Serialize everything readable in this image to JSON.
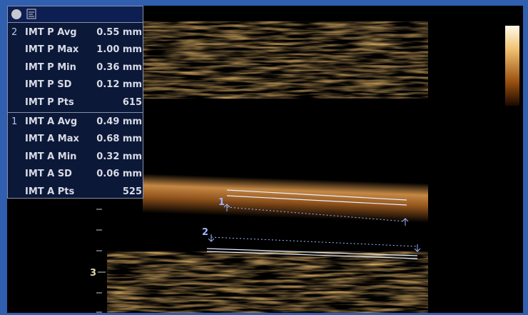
{
  "panel": {
    "groups": [
      {
        "index": "2",
        "rows": [
          {
            "label": "IMT P Avg",
            "value": "0.55 mm"
          },
          {
            "label": "IMT P Max",
            "value": "1.00 mm"
          },
          {
            "label": "IMT P Min",
            "value": "0.36 mm"
          },
          {
            "label": "IMT P SD",
            "value": "0.12 mm"
          },
          {
            "label": "IMT P Pts",
            "value": "615"
          }
        ]
      },
      {
        "index": "1",
        "rows": [
          {
            "label": "IMT A Avg",
            "value": "0.49 mm"
          },
          {
            "label": "IMT A Max",
            "value": "0.68 mm"
          },
          {
            "label": "IMT A Min",
            "value": "0.32 mm"
          },
          {
            "label": "IMT A SD",
            "value": "0.06 mm"
          },
          {
            "label": "IMT A Pts",
            "value": "525"
          }
        ]
      }
    ]
  },
  "image": {
    "depth_label": "3",
    "markers": [
      "1",
      "2"
    ]
  }
}
